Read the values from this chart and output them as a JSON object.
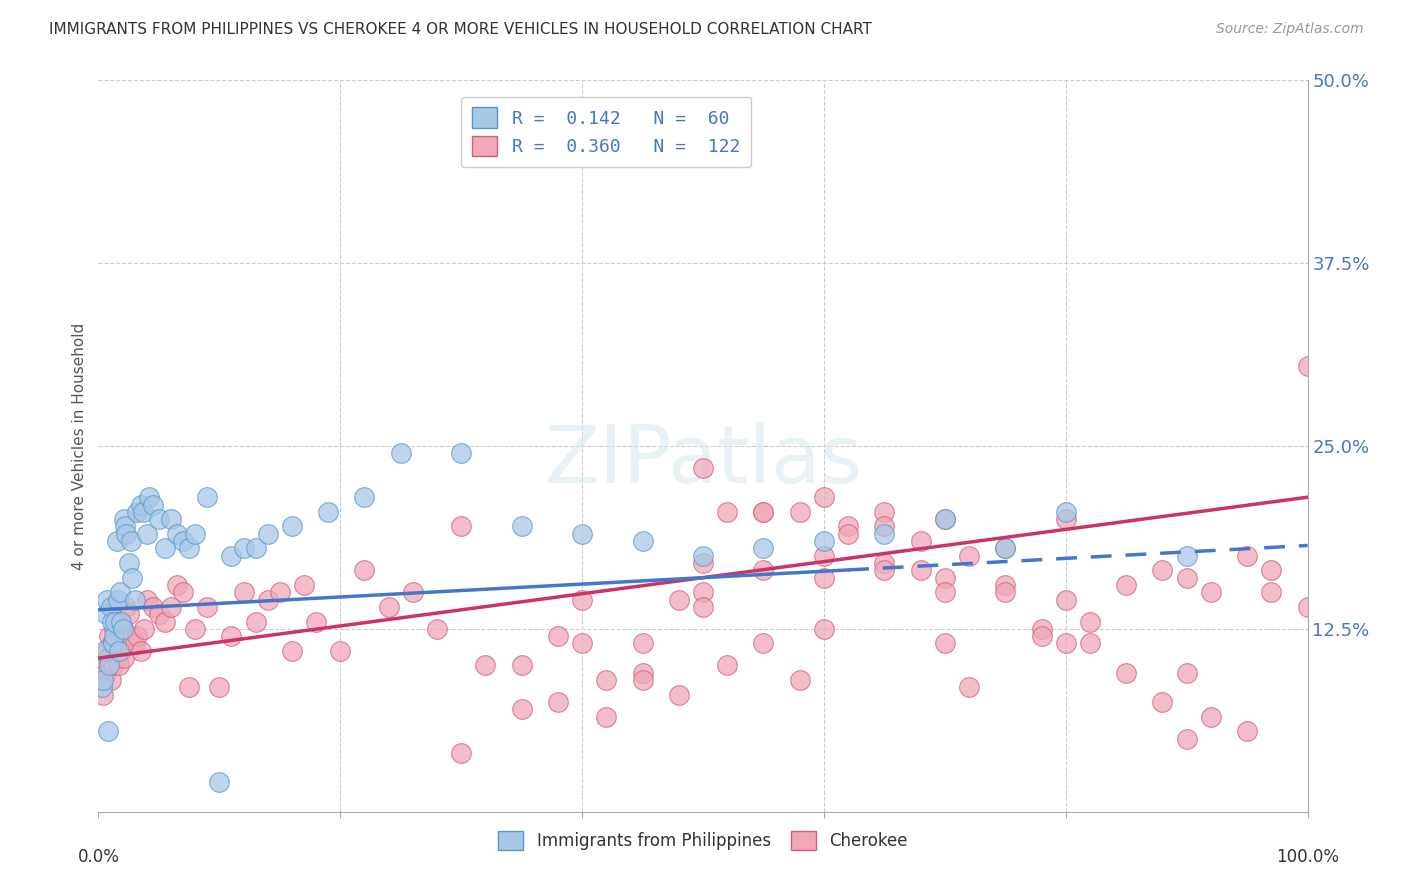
{
  "title": "IMMIGRANTS FROM PHILIPPINES VS CHEROKEE 4 OR MORE VEHICLES IN HOUSEHOLD CORRELATION CHART",
  "source": "Source: ZipAtlas.com",
  "ylabel": "4 or more Vehicles in Household",
  "legend_blue_R": "0.142",
  "legend_blue_N": "60",
  "legend_pink_R": "0.360",
  "legend_pink_N": "122",
  "xlim": [
    0,
    100
  ],
  "ylim": [
    0,
    50
  ],
  "yticks": [
    0,
    12.5,
    25.0,
    37.5,
    50.0
  ],
  "ytick_labels": [
    "",
    "12.5%",
    "25.0%",
    "37.5%",
    "50.0%"
  ],
  "background_color": "#ffffff",
  "blue_scatter_color": "#a8c8e8",
  "blue_edge_color": "#5599cc",
  "pink_scatter_color": "#f0a8b8",
  "pink_edge_color": "#d06080",
  "blue_line_color": "#4477cc",
  "pink_line_color": "#cc3366",
  "watermark_text": "ZIPatlas",
  "blue_line_x0": 0,
  "blue_line_y0": 13.8,
  "blue_line_x1": 100,
  "blue_line_y1": 18.2,
  "blue_solid_end": 62,
  "pink_line_x0": 0,
  "pink_line_y0": 10.5,
  "pink_line_x1": 100,
  "pink_line_y1": 21.5,
  "blue_x": [
    0.3,
    0.4,
    0.5,
    0.6,
    0.7,
    0.8,
    0.9,
    1.0,
    1.1,
    1.2,
    1.3,
    1.4,
    1.5,
    1.6,
    1.7,
    1.8,
    1.9,
    2.0,
    2.1,
    2.2,
    2.3,
    2.5,
    2.7,
    2.8,
    3.0,
    3.2,
    3.5,
    3.7,
    4.0,
    4.2,
    4.5,
    5.0,
    5.5,
    6.0,
    6.5,
    7.0,
    7.5,
    8.0,
    9.0,
    10.0,
    11.0,
    12.0,
    13.0,
    14.0,
    16.0,
    19.0,
    22.0,
    25.0,
    30.0,
    35.0,
    40.0,
    45.0,
    50.0,
    55.0,
    60.0,
    65.0,
    70.0,
    75.0,
    80.0,
    90.0
  ],
  "blue_y": [
    8.5,
    9.0,
    11.0,
    13.5,
    14.5,
    5.5,
    10.0,
    14.0,
    13.0,
    11.5,
    12.0,
    13.0,
    18.5,
    14.5,
    11.0,
    15.0,
    13.0,
    12.5,
    20.0,
    19.5,
    19.0,
    17.0,
    18.5,
    16.0,
    14.5,
    20.5,
    21.0,
    20.5,
    19.0,
    21.5,
    21.0,
    20.0,
    18.0,
    20.0,
    19.0,
    18.5,
    18.0,
    19.0,
    21.5,
    2.0,
    17.5,
    18.0,
    18.0,
    19.0,
    19.5,
    20.5,
    21.5,
    24.5,
    24.5,
    19.5,
    19.0,
    18.5,
    17.5,
    18.0,
    18.5,
    19.0,
    20.0,
    18.0,
    20.5,
    17.5
  ],
  "pink_x": [
    0.2,
    0.4,
    0.5,
    0.6,
    0.7,
    0.8,
    0.9,
    1.0,
    1.1,
    1.2,
    1.3,
    1.4,
    1.5,
    1.6,
    1.7,
    1.8,
    1.9,
    2.0,
    2.1,
    2.2,
    2.3,
    2.5,
    2.7,
    3.0,
    3.2,
    3.5,
    3.8,
    4.0,
    4.5,
    5.0,
    5.5,
    6.0,
    6.5,
    7.0,
    7.5,
    8.0,
    9.0,
    10.0,
    11.0,
    12.0,
    13.0,
    14.0,
    15.0,
    16.0,
    17.0,
    18.0,
    20.0,
    22.0,
    24.0,
    26.0,
    28.0,
    30.0,
    32.0,
    35.0,
    38.0,
    40.0,
    42.0,
    45.0,
    48.0,
    50.0,
    52.0,
    55.0,
    58.0,
    60.0,
    62.0,
    65.0,
    68.0,
    70.0,
    72.0,
    75.0,
    78.0,
    80.0,
    82.0,
    85.0,
    88.0,
    90.0,
    92.0,
    95.0,
    97.0,
    100.0,
    50.0,
    60.0,
    70.0,
    55.0,
    65.0,
    75.0,
    45.0,
    40.0,
    50.0,
    60.0,
    70.0,
    80.0,
    90.0,
    55.0,
    65.0,
    30.0,
    35.0,
    38.0,
    42.0,
    45.0,
    48.0,
    52.0,
    55.0,
    58.0,
    62.0,
    65.0,
    68.0,
    72.0,
    75.0,
    78.0,
    82.0,
    85.0,
    88.0,
    92.0,
    95.0,
    97.0,
    100.0,
    50.0,
    60.0,
    70.0,
    80.0,
    90.0
  ],
  "pink_y": [
    9.0,
    8.0,
    10.0,
    9.5,
    11.0,
    10.5,
    12.0,
    9.0,
    11.5,
    10.0,
    12.5,
    11.0,
    10.5,
    13.0,
    10.0,
    12.0,
    11.0,
    12.5,
    10.5,
    11.5,
    14.0,
    13.5,
    12.0,
    11.5,
    12.0,
    11.0,
    12.5,
    14.5,
    14.0,
    13.5,
    13.0,
    14.0,
    15.5,
    15.0,
    8.5,
    12.5,
    14.0,
    8.5,
    12.0,
    15.0,
    13.0,
    14.5,
    15.0,
    11.0,
    15.5,
    13.0,
    11.0,
    16.5,
    14.0,
    15.0,
    12.5,
    19.5,
    10.0,
    10.0,
    12.0,
    11.5,
    9.0,
    9.5,
    8.0,
    15.0,
    10.0,
    11.5,
    9.0,
    12.5,
    19.5,
    17.0,
    16.5,
    16.0,
    8.5,
    15.5,
    12.5,
    20.0,
    13.0,
    15.5,
    16.5,
    16.0,
    15.0,
    17.5,
    15.0,
    30.5,
    23.5,
    21.5,
    20.0,
    16.5,
    20.5,
    18.0,
    11.5,
    14.5,
    14.0,
    17.5,
    11.5,
    14.5,
    9.5,
    20.5,
    16.5,
    4.0,
    7.0,
    7.5,
    6.5,
    9.0,
    14.5,
    20.5,
    20.5,
    20.5,
    19.0,
    19.5,
    18.5,
    17.5,
    15.0,
    12.0,
    11.5,
    9.5,
    7.5,
    6.5,
    5.5,
    16.5,
    14.0,
    17.0,
    16.0,
    15.0,
    11.5,
    5.0
  ]
}
